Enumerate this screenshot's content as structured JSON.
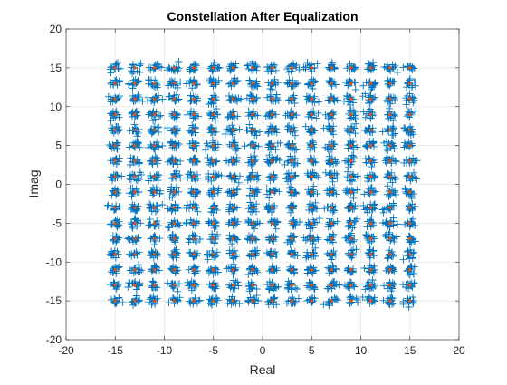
{
  "chart_data": {
    "type": "scatter",
    "title": "Constellation After Equalization",
    "xlabel": "Real",
    "ylabel": "Imag",
    "xlim": [
      -20,
      20
    ],
    "ylim": [
      -20,
      20
    ],
    "xticks": [
      -20,
      -15,
      -10,
      -5,
      0,
      5,
      10,
      15,
      20
    ],
    "yticks": [
      -20,
      -15,
      -10,
      -5,
      0,
      5,
      10,
      15,
      20
    ],
    "grid": true,
    "legend": "none",
    "constellation_levels": [
      -15,
      -13,
      -11,
      -9,
      -7,
      -5,
      -3,
      -1,
      1,
      3,
      5,
      7,
      9,
      11,
      13,
      15
    ],
    "series": [
      {
        "marker": "plus",
        "color": "#0072BD",
        "description_values": "received symbols scattered around each ideal 256-QAM point with spread of about ±0.8"
      },
      {
        "marker": "point",
        "color": "#D95319",
        "values": "ideal 256-QAM points at every combination of constellation_levels for real and imag"
      }
    ],
    "colors": {
      "received": "#0072BD",
      "reference": "#D95319",
      "grid": "#e6e6e6",
      "axis": "#262626"
    }
  }
}
